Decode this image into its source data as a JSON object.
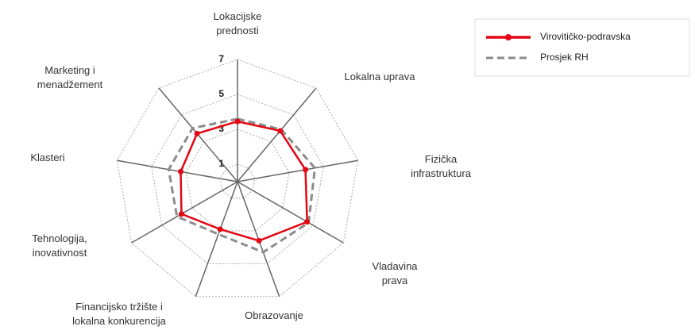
{
  "chart_data": {
    "type": "radar",
    "categories": [
      "Lokacijske\nprednosti",
      "Lokalna uprava",
      "Fizička\ninfrastruktura",
      "Vladavina\nprava",
      "Obrazovanje",
      "Financijsko tržište i\nlokalna konkurencija",
      "Tehnologija,\ninovativnost",
      "Klasteri",
      "Marketing i\nmenadžement"
    ],
    "series": [
      {
        "name": "Virovitičko-podravska",
        "color": "#e30613",
        "values": [
          3.45,
          3.8,
          3.95,
          4.6,
          3.6,
          2.9,
          3.7,
          3.3,
          3.6
        ]
      },
      {
        "name": "Prosjek RH",
        "color": "#8c8c8c",
        "values": [
          3.6,
          3.9,
          4.5,
          4.7,
          4.3,
          3.2,
          4.0,
          4.0,
          4.0
        ]
      }
    ],
    "ylim": [
      0,
      7
    ],
    "yticks": [
      1,
      3,
      5,
      7
    ],
    "grid": true,
    "legend": "top-right"
  }
}
